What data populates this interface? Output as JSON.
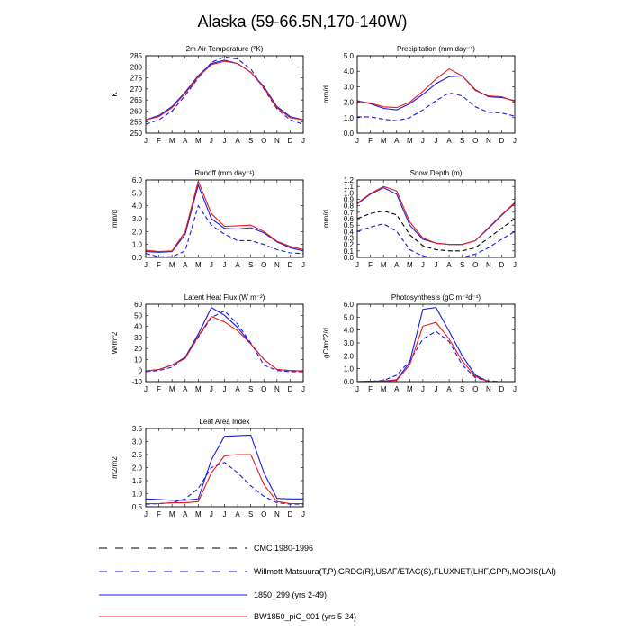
{
  "figure_title": "Alaska (59-66.5N,170-140W)",
  "months": [
    "J",
    "F",
    "M",
    "A",
    "M",
    "J",
    "J",
    "A",
    "S",
    "O",
    "N",
    "D",
    "J"
  ],
  "colors": {
    "cmc": "#000000",
    "obs": "#1a1ae6",
    "m1850": "#1a1ae6",
    "bw": "#e61a1a"
  },
  "legend": [
    {
      "key": "cmc",
      "label": "CMC 1980-1996",
      "style": "dashed"
    },
    {
      "key": "obs",
      "label": "Willmott-Matsuura(T,P),GRDC(R),USAF/ETAC(S),FLUXNET(LHF,GPP),MODIS(LAI)",
      "style": "dashed"
    },
    {
      "key": "m1850",
      "label": "1850_299 (yrs 2-49)",
      "style": "solid"
    },
    {
      "key": "bw",
      "label": "BW1850_piC_001 (yrs 5-24)",
      "style": "solid"
    }
  ],
  "chart_data": [
    {
      "type": "line",
      "title": "2m Air Temperature (°K)",
      "ylabel": "K",
      "ylim": [
        250,
        285
      ],
      "yticks": [
        "250",
        "255",
        "260",
        "265",
        "270",
        "275",
        "280",
        "285"
      ],
      "series": [
        {
          "name": "Willmott-Matsuura",
          "key": "obs",
          "values": [
            254,
            256,
            260,
            267,
            275,
            282,
            284.5,
            283.5,
            279,
            270,
            261,
            256,
            254
          ]
        },
        {
          "name": "1850_299 (yrs 2-49)",
          "key": "m1850",
          "values": [
            256,
            258,
            262,
            268.5,
            276,
            281.5,
            283,
            281.5,
            277.5,
            271,
            262,
            257.5,
            256
          ]
        },
        {
          "name": "BW1850_piC_001 (yrs 5-24)",
          "key": "bw",
          "values": [
            256,
            257.5,
            261.5,
            268,
            275.5,
            281,
            282.5,
            281.5,
            277.5,
            270.5,
            261.5,
            257,
            256
          ]
        }
      ]
    },
    {
      "type": "line",
      "title": "Precipitation (mm day⁻¹)",
      "ylabel": "mm/d",
      "ylim": [
        0,
        5
      ],
      "yticks": [
        "0.0",
        "1.0",
        "2.0",
        "3.0",
        "4.0",
        "5.0"
      ],
      "series": [
        {
          "name": "Willmott-Matsuura",
          "key": "obs",
          "values": [
            1.05,
            1.05,
            0.9,
            0.8,
            1.0,
            1.5,
            2.1,
            2.6,
            2.4,
            1.7,
            1.35,
            1.3,
            1.1
          ]
        },
        {
          "name": "1850_299 (yrs 2-49)",
          "key": "m1850",
          "values": [
            2.1,
            1.9,
            1.6,
            1.5,
            1.9,
            2.5,
            3.2,
            3.65,
            3.7,
            2.8,
            2.35,
            2.3,
            2.1
          ]
        },
        {
          "name": "BW1850_piC_001 (yrs 5-24)",
          "key": "bw",
          "values": [
            2.05,
            1.95,
            1.7,
            1.65,
            2.0,
            2.7,
            3.5,
            4.15,
            3.7,
            2.75,
            2.4,
            2.35,
            2.05
          ]
        }
      ]
    },
    {
      "type": "line",
      "title": "Runoff (mm day⁻¹)",
      "ylabel": "mm/d",
      "ylim": [
        0,
        6
      ],
      "yticks": [
        "0.0",
        "1.0",
        "2.0",
        "3.0",
        "4.0",
        "5.0",
        "6.0"
      ],
      "series": [
        {
          "name": "GRDC",
          "key": "obs",
          "values": [
            0.3,
            0.05,
            0.05,
            0.5,
            4.0,
            2.5,
            1.8,
            1.3,
            1.3,
            1.0,
            0.6,
            0.35,
            0.3
          ]
        },
        {
          "name": "1850_299 (yrs 2-49)",
          "key": "m1850",
          "values": [
            0.45,
            0.4,
            0.45,
            1.8,
            5.6,
            3.0,
            2.25,
            2.2,
            2.3,
            1.9,
            1.2,
            0.75,
            0.5
          ]
        },
        {
          "name": "BW1850_piC_001 (yrs 5-24)",
          "key": "bw",
          "values": [
            0.55,
            0.45,
            0.5,
            2.0,
            5.9,
            3.4,
            2.4,
            2.45,
            2.5,
            2.0,
            1.25,
            0.85,
            0.6
          ]
        }
      ]
    },
    {
      "type": "line",
      "title": "Snow Depth (m)",
      "ylabel": "mm/d",
      "ylim": [
        0,
        1.2
      ],
      "yticks": [
        "0.0",
        "0.1",
        "0.2",
        "0.3",
        "0.4",
        "0.5",
        "0.6",
        "0.7",
        "0.8",
        "0.9",
        "1.0",
        "1.1",
        "1.2"
      ],
      "series": [
        {
          "name": "CMC 1980-1996",
          "key": "cmc",
          "values": [
            0.6,
            0.68,
            0.72,
            0.66,
            0.35,
            0.18,
            0.12,
            0.1,
            0.1,
            0.15,
            0.3,
            0.45,
            0.6
          ]
        },
        {
          "name": "USAF/ETAC",
          "key": "obs",
          "values": [
            0.4,
            0.47,
            0.52,
            0.4,
            0.12,
            0.02,
            0.0,
            0.0,
            0.0,
            0.05,
            0.15,
            0.28,
            0.4
          ]
        },
        {
          "name": "1850_299 (yrs 2-49)",
          "key": "m1850",
          "values": [
            0.83,
            0.98,
            1.08,
            0.98,
            0.5,
            0.28,
            0.22,
            0.2,
            0.2,
            0.26,
            0.45,
            0.65,
            0.84
          ]
        },
        {
          "name": "BW1850_piC_001 (yrs 5-24)",
          "key": "bw",
          "values": [
            0.84,
            0.99,
            1.1,
            1.03,
            0.55,
            0.3,
            0.22,
            0.2,
            0.2,
            0.26,
            0.46,
            0.66,
            0.85
          ]
        }
      ]
    },
    {
      "type": "line",
      "title": "Latent Heat Flux (W m⁻²)",
      "ylabel": "W/m^2",
      "ylim": [
        -10,
        60
      ],
      "yticks": [
        "-10",
        "0",
        "10",
        "20",
        "30",
        "40",
        "50",
        "60"
      ],
      "series": [
        {
          "name": "FLUXNET",
          "key": "obs",
          "values": [
            -1,
            0,
            3,
            12,
            30,
            48,
            54,
            42,
            25,
            5,
            0,
            -1,
            -1
          ]
        },
        {
          "name": "1850_299 (yrs 2-49)",
          "key": "m1850",
          "values": [
            -0.5,
            1,
            5,
            12,
            33,
            57,
            50,
            39,
            24,
            10,
            1,
            0,
            -0.5
          ]
        },
        {
          "name": "BW1850_piC_001 (yrs 5-24)",
          "key": "bw",
          "values": [
            -0.5,
            1,
            5,
            11,
            31,
            49,
            44,
            36,
            24,
            10,
            1,
            0,
            -0.5
          ]
        }
      ]
    },
    {
      "type": "line",
      "title": "Photosynthesis (gC m⁻²d⁻¹)",
      "ylabel": "gC/m^2/d",
      "ylim": [
        0,
        6
      ],
      "yticks": [
        "0.0",
        "1.0",
        "2.0",
        "3.0",
        "4.0",
        "5.0",
        "6.0"
      ],
      "series": [
        {
          "name": "FLUXNET",
          "key": "obs",
          "values": [
            0.0,
            0.02,
            0.1,
            0.5,
            1.6,
            3.3,
            3.9,
            3.1,
            1.3,
            0.3,
            0.05,
            0.0,
            0.0
          ]
        },
        {
          "name": "1850_299 (yrs 2-49)",
          "key": "m1850",
          "values": [
            0.0,
            0.02,
            0.05,
            0.15,
            1.5,
            5.6,
            5.75,
            3.9,
            2.0,
            0.5,
            0.0,
            0.0,
            0.0
          ]
        },
        {
          "name": "BW1850_piC_001 (yrs 5-24)",
          "key": "bw",
          "values": [
            0.0,
            0.02,
            0.05,
            0.1,
            1.3,
            4.3,
            4.6,
            3.3,
            1.6,
            0.4,
            0.0,
            0.0,
            0.0
          ]
        }
      ]
    },
    {
      "type": "line",
      "title": "Leaf Area Index",
      "ylabel": "m2/m2",
      "ylim": [
        0.5,
        3.5
      ],
      "yticks": [
        "0.5",
        "1.0",
        "1.5",
        "2.0",
        "2.5",
        "3.0",
        "3.5"
      ],
      "series": [
        {
          "name": "MODIS",
          "key": "obs",
          "values": [
            0.6,
            0.62,
            0.65,
            0.8,
            1.2,
            2.0,
            2.2,
            1.8,
            1.3,
            0.9,
            0.65,
            0.6,
            0.6
          ]
        },
        {
          "name": "1850_299 (yrs 2-49)",
          "key": "m1850",
          "values": [
            0.8,
            0.78,
            0.75,
            0.75,
            0.8,
            2.3,
            3.2,
            3.22,
            3.24,
            1.8,
            0.82,
            0.8,
            0.8
          ]
        },
        {
          "name": "BW1850_piC_001 (yrs 5-24)",
          "key": "bw",
          "values": [
            0.62,
            0.62,
            0.65,
            0.65,
            0.7,
            1.8,
            2.45,
            2.5,
            2.5,
            1.35,
            0.7,
            0.62,
            0.62
          ]
        }
      ]
    }
  ]
}
